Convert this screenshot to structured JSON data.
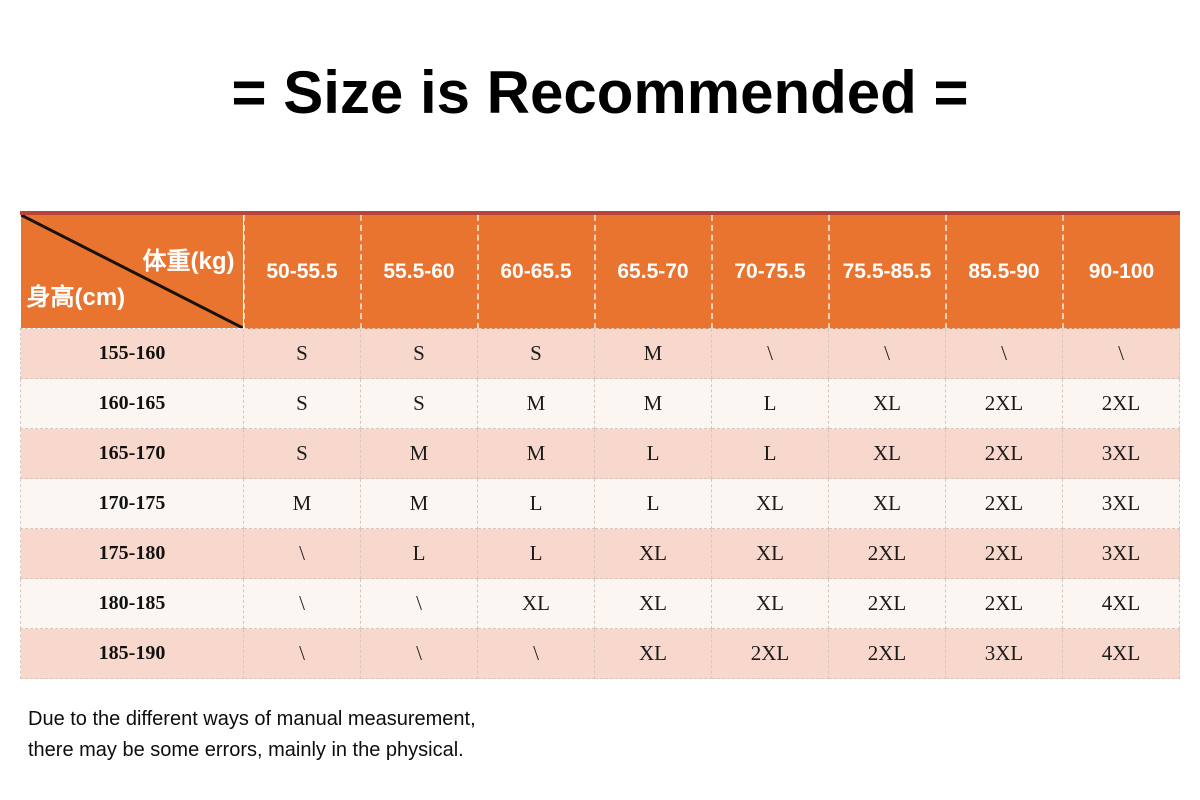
{
  "title": "= Size is Recommended =",
  "note": {
    "line1": "Due to the different ways of manual measurement,",
    "line2": "there may be some errors, mainly in the physical."
  },
  "colors": {
    "header_orange": "#e8742f",
    "top_line_red": "#b8453b",
    "row_pink": "#f8d8cc",
    "row_white": "#fbf6f2",
    "header_text": "#ffffff",
    "body_text": "#1b1b1b",
    "diagonal_line": "#1a1208"
  },
  "chart_data": {
    "type": "table",
    "title": "= Size is Recommended =",
    "corner_top": "体重(kg)",
    "corner_bottom": "身高(cm)",
    "weight_columns": [
      "50-55.5",
      "55.5-60",
      "60-65.5",
      "65.5-70",
      "70-75.5",
      "75.5-85.5",
      "85.5-90",
      "90-100"
    ],
    "rows": [
      [
        "155-160",
        "S",
        "S",
        "S",
        "M",
        "\\",
        "\\",
        "\\",
        "\\"
      ],
      [
        "160-165",
        "S",
        "S",
        "M",
        "M",
        "L",
        "XL",
        "2XL",
        "2XL"
      ],
      [
        "165-170",
        "S",
        "M",
        "M",
        "L",
        "L",
        "XL",
        "2XL",
        "3XL"
      ],
      [
        "170-175",
        "M",
        "M",
        "L",
        "L",
        "XL",
        "XL",
        "2XL",
        "3XL"
      ],
      [
        "175-180",
        "\\",
        "L",
        "L",
        "XL",
        "XL",
        "2XL",
        "2XL",
        "3XL"
      ],
      [
        "180-185",
        "\\",
        "\\",
        "XL",
        "XL",
        "XL",
        "2XL",
        "2XL",
        "4XL"
      ],
      [
        "185-190",
        "\\",
        "\\",
        "\\",
        "XL",
        "2XL",
        "2XL",
        "3XL",
        "4XL"
      ]
    ]
  }
}
